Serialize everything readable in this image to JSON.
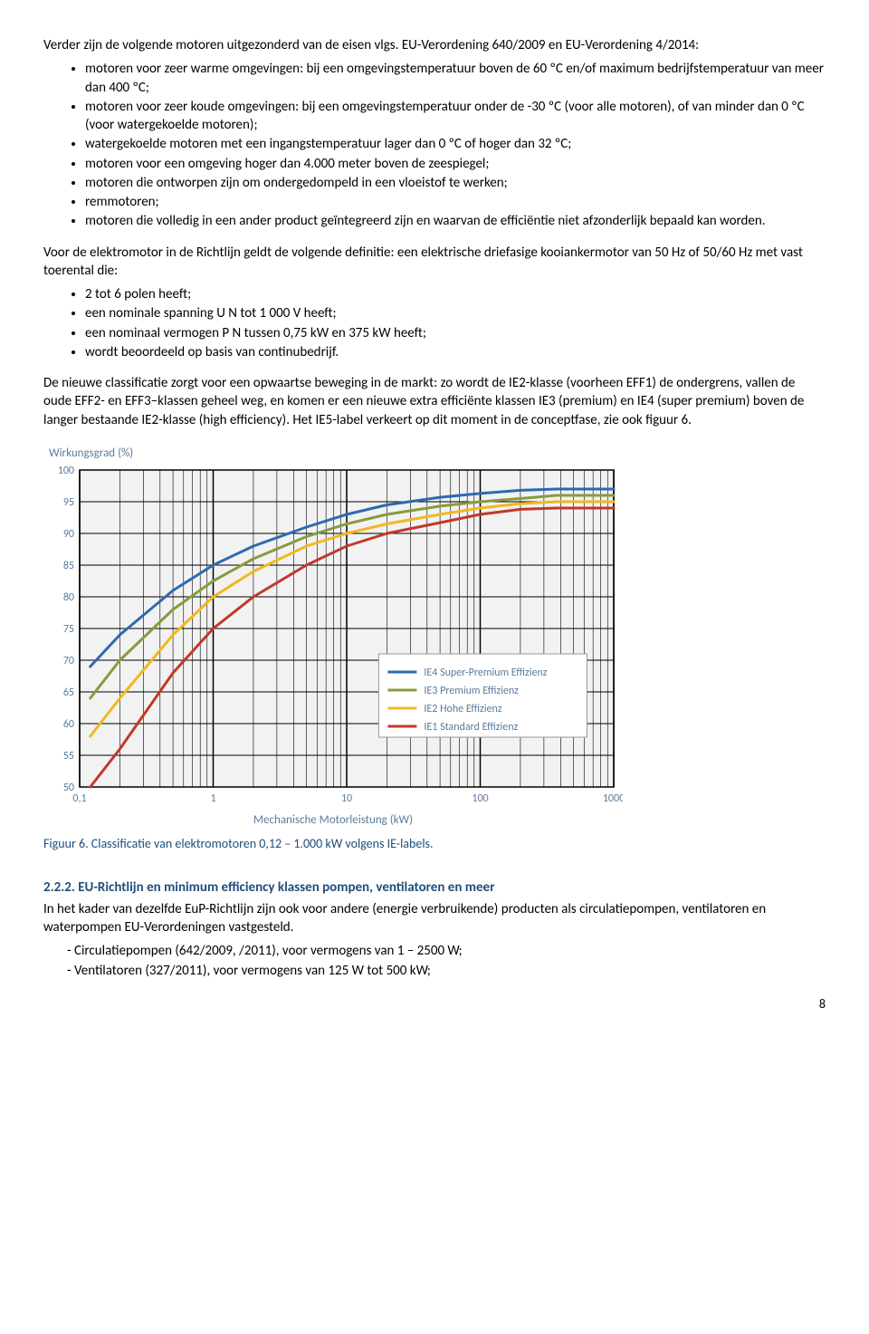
{
  "intro_line": "Verder zijn de volgende motoren uitgezonderd van de eisen vlgs. EU-Verordening 640/2009 en EU-Verordening 4/2014:",
  "exclusion_items": [
    "motoren voor zeer warme omgevingen: bij een omgevingstemperatuur boven de 60 ºC en/of maximum bedrijfstemperatuur van meer dan 400 ºC;",
    "motoren voor zeer koude omgevingen: bij een omgevingstemperatuur onder de -30 ºC (voor alle motoren), of van minder dan 0 ºC (voor watergekoelde motoren);",
    "watergekoelde motoren met een ingangstemperatuur lager dan 0 ºC of hoger dan 32 ºC;",
    "motoren voor een omgeving hoger dan 4.000 meter boven de zeespiegel;",
    "motoren die ontworpen zijn om ondergedompeld in een vloeistof te werken;",
    "remmotoren;",
    "motoren die volledig in een ander product geïntegreerd zijn en waarvan de efficiëntie niet afzonderlijk bepaald kan worden."
  ],
  "definition_para": "Voor de elektromotor in de Richtlijn geldt de volgende definitie: een elektrische driefasige kooiankermotor van 50 Hz of 50/60 Hz met vast toerental die:",
  "definition_items": [
    "2 tot 6 polen heeft;",
    "een nominale spanning U N tot 1 000 V heeft;",
    "een nominaal vermogen P N tussen 0,75 kW en 375 kW heeft;",
    "wordt beoordeeld op basis van continubedrijf."
  ],
  "class_para": "De nieuwe classificatie zorgt voor een opwaartse beweging in de markt: zo wordt de IE2-klasse (voorheen EFF1) de ondergrens, vallen de oude EFF2- en EFF3–klassen geheel weg, en komen er een nieuwe extra efficiënte klassen IE3 (premium) en IE4 (super premium) boven de langer bestaande IE2-klasse (high efficiency). Het IE5-label verkeert op dit moment in de conceptfase, zie ook figuur 6.",
  "chart": {
    "type": "line",
    "ylabel": "Wirkungsgrad (%)",
    "xlabel": "Mechanische Motorleistung (kW)",
    "background_color": "#f2f2f2",
    "grid_color": "#000000",
    "ylim": [
      50,
      100
    ],
    "ytick_step": 5,
    "yticks": [
      50,
      55,
      60,
      65,
      70,
      75,
      80,
      85,
      90,
      95,
      100
    ],
    "xticks_log": [
      0.1,
      1,
      10,
      100,
      1000
    ],
    "xtick_labels": [
      "0,1",
      "1",
      "10",
      "100",
      "1000"
    ],
    "line_width": 3,
    "series": [
      {
        "name": "IE4",
        "label": "IE4 Super-Premium Effizienz",
        "color": "#2e6ab0",
        "points": [
          [
            0.12,
            69
          ],
          [
            0.2,
            74
          ],
          [
            0.5,
            81
          ],
          [
            1,
            85
          ],
          [
            2,
            88
          ],
          [
            5,
            91
          ],
          [
            10,
            93
          ],
          [
            20,
            94.5
          ],
          [
            50,
            95.7
          ],
          [
            100,
            96.3
          ],
          [
            200,
            96.8
          ],
          [
            375,
            97
          ],
          [
            1000,
            97
          ]
        ]
      },
      {
        "name": "IE3",
        "label": "IE3 Premium Effizienz",
        "color": "#8a9a3e",
        "points": [
          [
            0.12,
            64
          ],
          [
            0.2,
            70
          ],
          [
            0.5,
            78
          ],
          [
            1,
            82.5
          ],
          [
            2,
            86
          ],
          [
            5,
            89.5
          ],
          [
            10,
            91.5
          ],
          [
            20,
            93
          ],
          [
            50,
            94.3
          ],
          [
            100,
            95
          ],
          [
            200,
            95.5
          ],
          [
            375,
            96
          ],
          [
            1000,
            96
          ]
        ]
      },
      {
        "name": "IE2",
        "label": "IE2 Hohe Effizienz",
        "color": "#f2b81f",
        "points": [
          [
            0.12,
            58
          ],
          [
            0.2,
            64
          ],
          [
            0.5,
            74
          ],
          [
            1,
            80
          ],
          [
            2,
            84
          ],
          [
            5,
            88
          ],
          [
            10,
            90
          ],
          [
            20,
            91.5
          ],
          [
            50,
            93
          ],
          [
            100,
            94
          ],
          [
            200,
            94.7
          ],
          [
            375,
            95
          ],
          [
            1000,
            95
          ]
        ]
      },
      {
        "name": "IE1",
        "label": "IE1 Standard Effizienz",
        "color": "#c0392b",
        "points": [
          [
            0.12,
            50
          ],
          [
            0.2,
            56
          ],
          [
            0.5,
            68
          ],
          [
            1,
            75
          ],
          [
            2,
            80
          ],
          [
            5,
            85
          ],
          [
            10,
            88
          ],
          [
            20,
            90
          ],
          [
            50,
            91.7
          ],
          [
            100,
            93
          ],
          [
            200,
            93.8
          ],
          [
            375,
            94
          ],
          [
            1000,
            94
          ]
        ]
      }
    ],
    "legend_order": [
      "IE4",
      "IE3",
      "IE2",
      "IE1"
    ],
    "label_fontsize": 13,
    "tick_fontsize": 12
  },
  "caption": "Figuur 6. Classificatie van elektromotoren 0,12 – 1.000 kW volgens IE-labels.",
  "section_heading": "2.2.2. EU-Richtlijn en minimum efficiency klassen pompen, ventilatoren en meer",
  "section_para": "In het kader van dezelfde EuP-Richtlijn zijn ook voor andere (energie verbruikende) producten als circulatiepompen, ventilatoren en waterpompen EU-Verordeningen vastgesteld.",
  "section_items": [
    "Circulatiepompen (642/2009, /2011), voor vermogens van 1 – 2500 W;",
    "Ventilatoren (327/2011), voor vermogens van 125 W tot 500 kW;"
  ],
  "page_number": "8"
}
